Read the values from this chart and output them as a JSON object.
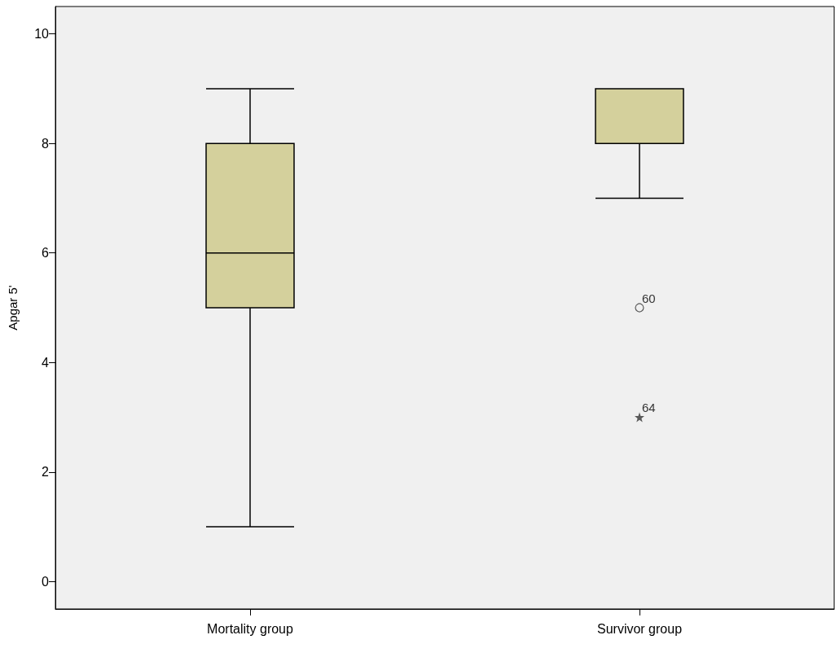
{
  "chart_data": {
    "type": "box",
    "ylabel": "Apgar 5'",
    "categories": [
      "Mortality group",
      "Survivor group"
    ],
    "boxes": [
      {
        "low": 1,
        "q1": 5,
        "median": 6,
        "q3": 8,
        "high": 9
      },
      {
        "low": 7,
        "q1": 8,
        "median": 8,
        "q3": 9,
        "high": 9,
        "outliers": [
          5,
          3
        ]
      }
    ],
    "color": "#d4d09c",
    "ylim": [
      -0.5,
      10.5
    ],
    "yticks": [
      0,
      2,
      4,
      6,
      8,
      10
    ],
    "grid": false,
    "annotations": [
      "60",
      "64"
    ]
  }
}
